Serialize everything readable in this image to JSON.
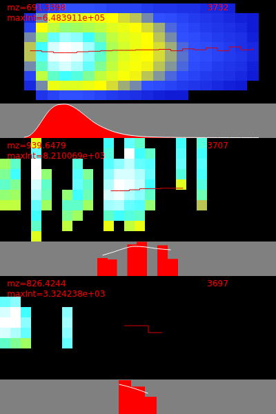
{
  "chart_data": [
    {
      "type": "heatmap",
      "title": "mz=691.3398",
      "subtitle": "maxInt=6.483911e+05",
      "annotation": "3732",
      "tick_labels": false,
      "xlim": [
        0,
        20
      ],
      "ylim": [
        0,
        10
      ],
      "zlim": [
        0,
        100
      ],
      "z": [
        [
          null,
          20,
          25,
          30,
          30,
          30,
          28,
          25,
          25,
          25,
          22,
          20,
          20,
          18,
          18,
          15,
          15,
          12,
          null,
          null
        ],
        [
          15,
          35,
          45,
          48,
          50,
          48,
          46,
          45,
          42,
          40,
          35,
          30,
          28,
          25,
          22,
          20,
          18,
          15,
          12,
          10
        ],
        [
          25,
          45,
          55,
          62,
          60,
          58,
          55,
          50,
          48,
          45,
          42,
          38,
          32,
          28,
          25,
          22,
          20,
          18,
          15,
          10
        ],
        [
          35,
          60,
          80,
          88,
          85,
          75,
          65,
          55,
          50,
          48,
          45,
          40,
          35,
          30,
          28,
          25,
          22,
          20,
          18,
          12
        ],
        [
          40,
          75,
          95,
          100,
          98,
          88,
          72,
          58,
          52,
          48,
          45,
          42,
          38,
          32,
          30,
          28,
          25,
          22,
          18,
          15
        ],
        [
          40,
          78,
          98,
          100,
          97,
          86,
          70,
          57,
          50,
          47,
          45,
          42,
          38,
          33,
          30,
          28,
          25,
          22,
          20,
          15
        ],
        [
          35,
          70,
          90,
          95,
          90,
          80,
          65,
          55,
          48,
          46,
          44,
          40,
          36,
          32,
          28,
          26,
          22,
          20,
          18,
          12
        ],
        [
          25,
          55,
          70,
          75,
          72,
          65,
          55,
          50,
          46,
          44,
          40,
          36,
          32,
          28,
          25,
          22,
          20,
          18,
          15,
          10
        ],
        [
          15,
          35,
          48,
          50,
          50,
          48,
          45,
          42,
          38,
          35,
          30,
          28,
          25,
          22,
          20,
          18,
          15,
          12,
          10,
          null
        ],
        [
          null,
          20,
          25,
          30,
          30,
          28,
          25,
          22,
          20,
          18,
          15,
          12,
          10,
          10,
          null,
          null,
          null,
          null,
          null,
          null
        ]
      ],
      "line": {
        "x": [
          0.5,
          1.5,
          2.5,
          3.5,
          4.5,
          5.5,
          6.5,
          7.5,
          8.5,
          9.5,
          10.5,
          11.5,
          12.5,
          13.5,
          14.5,
          15.5,
          16.5,
          17.5,
          18.5,
          19.5
        ],
        "values": [
          4.9,
          5.0,
          5.1,
          5.1,
          5.0,
          4.95,
          4.9,
          4.85,
          4.85,
          4.8,
          4.8,
          4.75,
          4.9,
          4.7,
          4.8,
          4.6,
          4.9,
          4.5,
          4.8,
          4.6
        ],
        "color": "#dd0000",
        "line_style": "step"
      }
    },
    {
      "type": "area",
      "tick_labels": false,
      "xlim": [
        0,
        20
      ],
      "ylim": [
        0,
        660000
      ],
      "color": "#ff0000",
      "x": [
        0,
        0.5,
        1,
        1.5,
        2,
        2.5,
        3,
        3.5,
        4,
        4.5,
        5,
        5.5,
        6,
        6.5,
        7,
        7.5,
        8,
        8.5,
        9,
        9.5,
        10,
        10.5,
        11,
        11.5,
        12,
        12.5,
        13,
        13.5,
        14,
        14.5,
        15,
        15.5,
        16,
        16.5,
        17,
        17.5,
        18,
        18.5,
        19,
        19.5,
        20
      ],
      "values": [
        13000,
        52000,
        162000,
        324000,
        486000,
        596000,
        642000,
        648391,
        616000,
        551000,
        467000,
        376000,
        292000,
        227000,
        175000,
        130000,
        97000,
        71000,
        52000,
        39000,
        29000,
        23000,
        19000,
        16000,
        13000,
        13000,
        10000,
        10000,
        9000,
        9000,
        8000,
        8000,
        8000,
        7000,
        7000,
        7000,
        6000,
        6000,
        6000,
        6000,
        6000
      ]
    },
    {
      "type": "heatmap",
      "title": "mz=939.6479",
      "subtitle": "maxInt=8.210069e+03",
      "annotation": "3707",
      "tick_labels": false,
      "xlim": [
        0,
        26
      ],
      "ylim": [
        0,
        10
      ],
      "zlim": [
        0,
        100
      ],
      "z": [
        [
          null,
          null,
          null,
          50,
          null,
          null,
          null,
          null,
          null,
          null,
          75,
          null,
          80,
          70,
          null,
          null,
          null,
          75,
          null,
          72
        ],
        [
          null,
          null,
          null,
          80,
          null,
          null,
          null,
          null,
          null,
          null,
          72,
          null,
          100,
          75,
          70,
          null,
          null,
          78,
          null,
          75
        ],
        [
          60,
          70,
          null,
          100,
          null,
          null,
          null,
          72,
          null,
          null,
          78,
          85,
          92,
          80,
          78,
          null,
          null,
          80,
          null,
          78
        ],
        [
          65,
          75,
          null,
          100,
          62,
          null,
          null,
          78,
          65,
          null,
          85,
          95,
          95,
          90,
          80,
          null,
          null,
          72,
          null,
          76
        ],
        [
          70,
          65,
          null,
          95,
          70,
          null,
          null,
          80,
          70,
          null,
          90,
          100,
          98,
          92,
          75,
          null,
          null,
          50,
          null,
          72
        ],
        [
          62,
          60,
          null,
          90,
          68,
          null,
          62,
          75,
          68,
          null,
          95,
          98,
          90,
          85,
          70,
          null,
          null,
          null,
          null,
          68
        ],
        [
          55,
          55,
          null,
          80,
          60,
          null,
          70,
          70,
          60,
          null,
          88,
          90,
          80,
          78,
          62,
          null,
          null,
          null,
          null,
          40
        ],
        [
          null,
          null,
          null,
          75,
          null,
          null,
          65,
          60,
          null,
          null,
          70,
          75,
          72,
          70,
          null,
          null,
          null,
          null,
          null,
          null
        ],
        [
          null,
          null,
          null,
          70,
          null,
          null,
          55,
          null,
          null,
          null,
          48,
          null,
          55,
          48,
          null,
          null,
          null,
          null,
          null,
          null
        ],
        [
          null,
          null,
          null,
          50,
          null,
          null,
          null,
          null,
          null,
          null,
          null,
          null,
          null,
          null,
          null,
          null,
          null,
          null,
          null,
          null
        ]
      ],
      "line": {
        "x": [
          10.7,
          11.5,
          12.5,
          13.5,
          14.5,
          15.5,
          16.5,
          17.7
        ],
        "values": [
          5.1,
          5.1,
          5.0,
          4.9,
          4.9,
          4.85,
          4.85,
          4.85
        ],
        "color": "#dd0000",
        "line_style": "step"
      }
    },
    {
      "type": "histogram",
      "tick_labels": false,
      "xlim": [
        0,
        26
      ],
      "ylim": [
        0,
        8300
      ],
      "color": "#ff0000",
      "bins": [
        9.4,
        10.4,
        11.3,
        12.3,
        13.2,
        14.2,
        15.2,
        16.2,
        17.2
      ],
      "values": [
        4300,
        4000,
        0,
        7600,
        8210.069,
        0,
        7400,
        4100
      ],
      "line": {
        "x": [
          9.9,
          11,
          12,
          13,
          14,
          15,
          16.5
        ],
        "values": [
          4980,
          5800,
          6640,
          7140,
          7000,
          6640,
          6300
        ],
        "color": "#ffffff"
      }
    },
    {
      "type": "heatmap",
      "title": "mz=826.4244",
      "subtitle": "maxInt=3.324238e+03",
      "annotation": "3697",
      "tick_labels": false,
      "xlim": [
        0,
        26
      ],
      "ylim": [
        0,
        10
      ],
      "zlim": [
        0,
        100
      ],
      "z": [
        [
          null,
          null,
          null,
          null,
          null,
          null,
          null
        ],
        [
          null,
          null,
          null,
          null,
          null,
          null,
          null
        ],
        [
          80,
          85,
          null,
          null,
          null,
          null,
          null
        ],
        [
          95,
          100,
          75,
          null,
          null,
          null,
          85
        ],
        [
          100,
          100,
          85,
          null,
          null,
          null,
          88
        ],
        [
          95,
          90,
          80,
          null,
          null,
          null,
          85
        ],
        [
          70,
          65,
          60,
          null,
          null,
          null,
          80
        ],
        [
          null,
          null,
          null,
          null,
          null,
          null,
          null
        ],
        [
          null,
          null,
          null,
          null,
          null,
          null,
          null
        ],
        [
          null,
          null,
          null,
          null,
          null,
          null,
          null
        ]
      ],
      "line": {
        "x": [
          12,
          14.33,
          15.67
        ],
        "values": [
          4.8,
          5.47,
          5.47
        ],
        "color": "#dd0000",
        "line_style": "step"
      }
    },
    {
      "type": "histogram",
      "tick_labels": false,
      "xlim": [
        0,
        26
      ],
      "ylim": [
        0,
        3400
      ],
      "color": "#ff0000",
      "bins": [
        11.47,
        12.67,
        14,
        15.13
      ],
      "values": [
        3324.238,
        2700,
        1700
      ],
      "line": {
        "x": [
          11.5,
          13,
          14.3
        ],
        "values": [
          2924,
          2516,
          2040
        ],
        "color": "#ffffff"
      }
    }
  ]
}
